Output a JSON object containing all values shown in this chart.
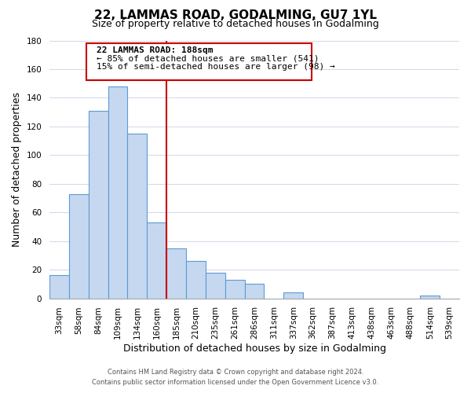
{
  "title": "22, LAMMAS ROAD, GODALMING, GU7 1YL",
  "subtitle": "Size of property relative to detached houses in Godalming",
  "xlabel": "Distribution of detached houses by size in Godalming",
  "ylabel": "Number of detached properties",
  "bar_labels": [
    "33sqm",
    "58sqm",
    "84sqm",
    "109sqm",
    "134sqm",
    "160sqm",
    "185sqm",
    "210sqm",
    "235sqm",
    "261sqm",
    "286sqm",
    "311sqm",
    "337sqm",
    "362sqm",
    "387sqm",
    "413sqm",
    "438sqm",
    "463sqm",
    "488sqm",
    "514sqm",
    "539sqm"
  ],
  "bar_values": [
    16,
    73,
    131,
    148,
    115,
    53,
    35,
    26,
    18,
    13,
    10,
    0,
    4,
    0,
    0,
    0,
    0,
    0,
    0,
    2,
    0
  ],
  "bar_color": "#c5d8f0",
  "bar_edge_color": "#5b9bd5",
  "vline_color": "#cc0000",
  "annotation_title": "22 LAMMAS ROAD: 188sqm",
  "annotation_line1": "← 85% of detached houses are smaller (541)",
  "annotation_line2": "15% of semi-detached houses are larger (98) →",
  "annotation_box_edge": "#cc0000",
  "ylim": [
    0,
    180
  ],
  "yticks": [
    0,
    20,
    40,
    60,
    80,
    100,
    120,
    140,
    160,
    180
  ],
  "footer1": "Contains HM Land Registry data © Crown copyright and database right 2024.",
  "footer2": "Contains public sector information licensed under the Open Government Licence v3.0.",
  "title_fontsize": 11,
  "subtitle_fontsize": 9,
  "tick_fontsize": 7.5,
  "label_fontsize": 9,
  "footer_fontsize": 6,
  "background_color": "#ffffff",
  "grid_color": "#d0d8e8"
}
